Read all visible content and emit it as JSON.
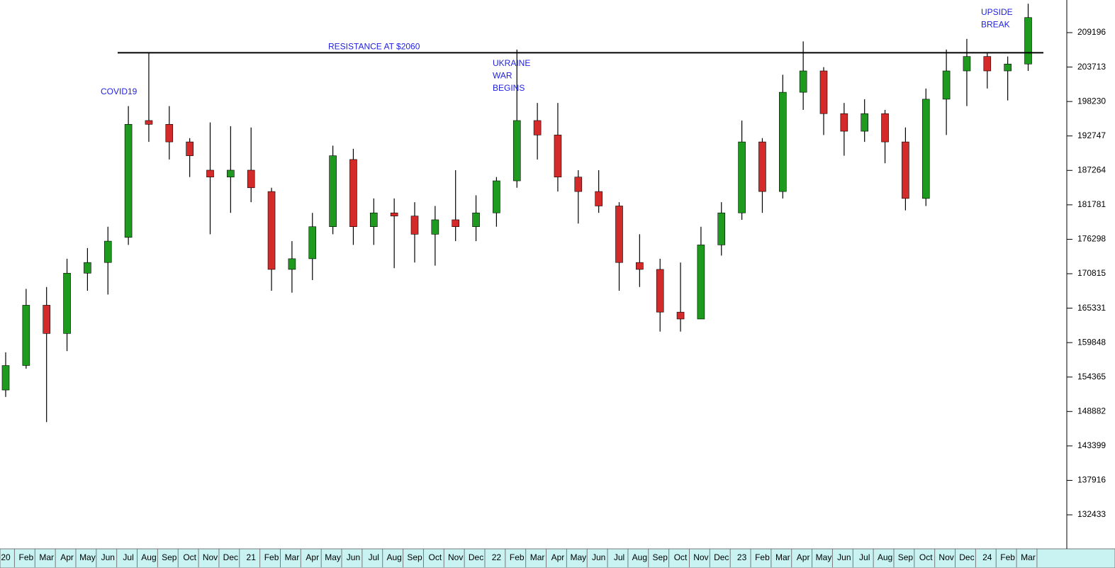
{
  "chart_data": {
    "type": "candlestick",
    "categories": [
      "20",
      "Feb",
      "Mar",
      "Apr",
      "May",
      "Jun",
      "Jul",
      "Aug",
      "Sep",
      "Oct",
      "Nov",
      "Dec",
      "21",
      "Feb",
      "Mar",
      "Apr",
      "May",
      "Jun",
      "Jul",
      "Aug",
      "Sep",
      "Oct",
      "Nov",
      "Dec",
      "22",
      "Feb",
      "Mar",
      "Apr",
      "May",
      "Jun",
      "Jul",
      "Aug",
      "Sep",
      "Oct",
      "Nov",
      "Dec",
      "23",
      "Feb",
      "Mar",
      "Apr",
      "May",
      "Jun",
      "Jul",
      "Aug",
      "Sep",
      "Oct",
      "Nov",
      "Dec",
      "24",
      "Feb",
      "Mar"
    ],
    "open": [
      152300,
      156200,
      165800,
      161300,
      170900,
      172600,
      176600,
      195200,
      194600,
      191800,
      187300,
      186200,
      187300,
      183900,
      171500,
      173200,
      178300,
      189000,
      178300,
      180500,
      180000,
      177100,
      179400,
      178300,
      180500,
      185600,
      195200,
      192900,
      186200,
      183900,
      181600,
      172600,
      171500,
      164700,
      163600,
      175400,
      180500,
      191800,
      183900,
      199700,
      203100,
      196300,
      193500,
      196300,
      191800,
      182800,
      198600,
      203100,
      205400,
      203100,
      204200
    ],
    "high": [
      158300,
      168400,
      168700,
      173200,
      174900,
      178300,
      197500,
      205900,
      197500,
      192400,
      194900,
      194300,
      194100,
      184500,
      176000,
      180500,
      191200,
      190700,
      182800,
      182800,
      182200,
      181600,
      187300,
      183300,
      186200,
      206500,
      198000,
      198000,
      187300,
      187300,
      182200,
      177100,
      173200,
      172600,
      178300,
      182200,
      195200,
      192400,
      202500,
      207800,
      203700,
      198000,
      198600,
      196900,
      194100,
      200300,
      206500,
      208200,
      205900,
      205400,
      213800
    ],
    "low": [
      151200,
      155700,
      147200,
      158500,
      168100,
      167500,
      175400,
      191800,
      189000,
      186200,
      177100,
      180500,
      182200,
      168100,
      167800,
      169800,
      177100,
      175400,
      175400,
      171700,
      172600,
      172100,
      176000,
      176000,
      178300,
      184500,
      189000,
      183900,
      178800,
      180500,
      168100,
      168700,
      161600,
      161600,
      163600,
      173700,
      179400,
      180500,
      182800,
      196900,
      192900,
      189600,
      191800,
      188400,
      180900,
      181600,
      192900,
      197500,
      200300,
      198400,
      203100
    ],
    "close": [
      156200,
      165800,
      161300,
      170900,
      172600,
      176000,
      194600,
      194600,
      191800,
      189600,
      186200,
      187300,
      184500,
      171500,
      173200,
      178300,
      189600,
      178300,
      180500,
      180000,
      177100,
      179400,
      178300,
      180500,
      185600,
      195200,
      192900,
      186200,
      183900,
      181600,
      172600,
      171500,
      164700,
      163600,
      175400,
      180500,
      191800,
      183900,
      199700,
      203100,
      196300,
      193500,
      196300,
      191800,
      182800,
      198600,
      203100,
      205400,
      203100,
      204200,
      211600
    ],
    "up_color": "#1e9a1e",
    "down_color": "#d42a2a",
    "wick_color": "#000000",
    "ylim": [
      127240,
      214390
    ],
    "yticks": [
      209196,
      203713,
      198230,
      192747,
      187264,
      181781,
      176298,
      170815,
      165331,
      159848,
      154365,
      148882,
      143399,
      137916,
      132433
    ],
    "resistance": {
      "value": 206000,
      "label": "RESISTANCE AT $2060"
    },
    "annotations": [
      [
        "COVID19"
      ],
      [
        "UKRAINE",
        "WAR",
        "BEGINS"
      ],
      [
        "UPSIDE",
        "BREAK"
      ]
    ]
  }
}
